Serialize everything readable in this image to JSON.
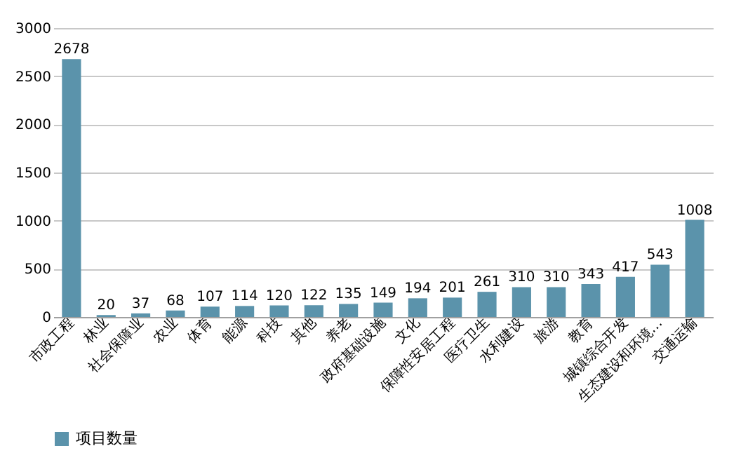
{
  "chart_data": {
    "type": "bar",
    "categories": [
      "市政工程",
      "林业",
      "社会保障业",
      "农业",
      "体育",
      "能源",
      "科技",
      "其他",
      "养老",
      "政府基础设施",
      "文化",
      "保障性安居工程",
      "医疗卫生",
      "水利建设",
      "旅游",
      "教育",
      "城镇综合开发",
      "生态建设和环境…",
      "交通运输"
    ],
    "series": [
      {
        "name": "项目数量",
        "color": "#5b93ab",
        "values": [
          2678,
          20,
          37,
          68,
          107,
          114,
          120,
          122,
          135,
          149,
          194,
          201,
          261,
          310,
          310,
          343,
          417,
          543,
          1008
        ]
      }
    ],
    "ylim": [
      0,
      3000
    ],
    "yticks": [
      0,
      500,
      1000,
      1500,
      2000,
      2500,
      3000
    ],
    "grid": "y",
    "legend": "bottom",
    "data_labels": true
  }
}
